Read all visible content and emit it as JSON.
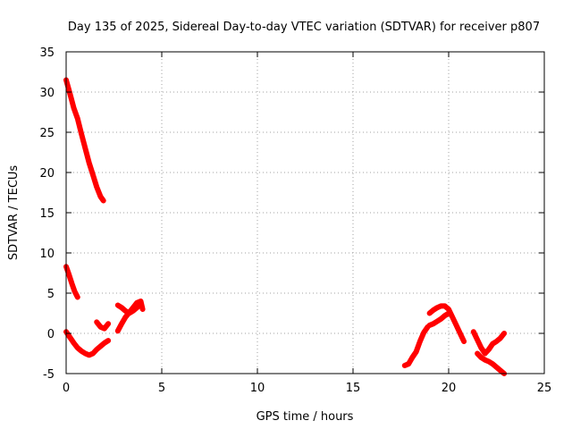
{
  "chart_data": {
    "type": "line",
    "title": "Day 135 of 2025, Sidereal Day-to-day VTEC variation (SDTVAR) for receiver p807",
    "xlabel": "GPS time / hours",
    "ylabel": "SDTVAR / TECUs",
    "xlim": [
      0,
      25
    ],
    "ylim": [
      -5,
      35
    ],
    "xticks": [
      0,
      5,
      10,
      15,
      20,
      25
    ],
    "yticks": [
      -5,
      0,
      5,
      10,
      15,
      20,
      25,
      30,
      35
    ],
    "grid": true,
    "legend": "none",
    "series_color": "#ff0000",
    "series": [
      {
        "name": "segment-1",
        "x": [
          0.0,
          0.2,
          0.4,
          0.6,
          0.8,
          1.0,
          1.2,
          1.4,
          1.6,
          1.8,
          1.95
        ],
        "y": [
          31.5,
          29.8,
          28.0,
          26.7,
          24.8,
          23.0,
          21.2,
          19.7,
          18.2,
          17.0,
          16.5
        ]
      },
      {
        "name": "segment-2",
        "x": [
          0.0,
          0.15,
          0.3,
          0.45,
          0.6
        ],
        "y": [
          8.3,
          7.3,
          6.2,
          5.2,
          4.5
        ]
      },
      {
        "name": "segment-3",
        "x": [
          0.0,
          0.2,
          0.4,
          0.6,
          0.8,
          1.0,
          1.2,
          1.4,
          1.6,
          1.8,
          2.0,
          2.2
        ],
        "y": [
          0.2,
          -0.5,
          -1.2,
          -1.8,
          -2.2,
          -2.5,
          -2.7,
          -2.5,
          -2.0,
          -1.6,
          -1.2,
          -0.9
        ]
      },
      {
        "name": "segment-4",
        "x": [
          1.6,
          1.8,
          2.0,
          2.2
        ],
        "y": [
          1.4,
          0.8,
          0.6,
          1.2
        ]
      },
      {
        "name": "segment-5",
        "x": [
          2.7,
          2.9,
          3.1,
          3.3,
          3.5,
          3.7,
          3.9,
          4.0
        ],
        "y": [
          0.3,
          1.2,
          2.0,
          2.6,
          3.2,
          3.8,
          4.0,
          3.0
        ]
      },
      {
        "name": "segment-6",
        "x": [
          2.7,
          2.9,
          3.1,
          3.3,
          3.5,
          3.7,
          3.9
        ],
        "y": [
          3.5,
          3.2,
          2.8,
          2.5,
          2.8,
          3.2,
          3.6
        ]
      },
      {
        "name": "segment-7",
        "x": [
          17.7,
          17.9,
          18.1,
          18.3,
          18.5,
          18.7,
          18.9
        ],
        "y": [
          -4.0,
          -3.8,
          -3.0,
          -2.3,
          -1.0,
          0.1,
          0.8
        ]
      },
      {
        "name": "segment-8",
        "x": [
          19.0,
          19.2,
          19.4,
          19.6,
          19.8,
          20.0
        ],
        "y": [
          1.0,
          1.2,
          1.5,
          1.8,
          2.2,
          2.5
        ]
      },
      {
        "name": "segment-9",
        "x": [
          19.0,
          19.2,
          19.4,
          19.6,
          19.8,
          20.0,
          20.2,
          20.4,
          20.6,
          20.8
        ],
        "y": [
          2.5,
          2.9,
          3.2,
          3.4,
          3.4,
          3.0,
          2.0,
          1.0,
          0.0,
          -1.0
        ]
      },
      {
        "name": "segment-10",
        "x": [
          21.3,
          21.5,
          21.7,
          21.9,
          22.1,
          22.3,
          22.5,
          22.7,
          22.9
        ],
        "y": [
          0.2,
          -0.8,
          -1.8,
          -2.5,
          -2.0,
          -1.3,
          -1.0,
          -0.6,
          0.0
        ]
      },
      {
        "name": "segment-11",
        "x": [
          21.5,
          21.7,
          21.9,
          22.1,
          22.3,
          22.5,
          22.7,
          22.9
        ],
        "y": [
          -2.5,
          -3.0,
          -3.3,
          -3.5,
          -3.8,
          -4.2,
          -4.6,
          -5.0
        ]
      }
    ]
  }
}
